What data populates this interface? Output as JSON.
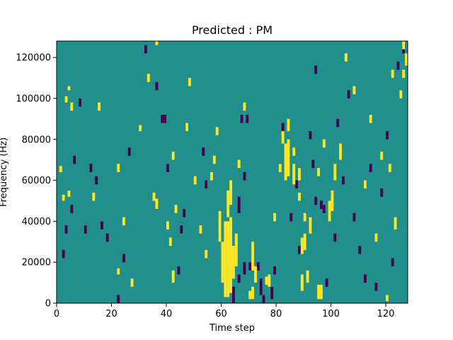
{
  "chart_data": {
    "type": "heatmap",
    "title": "Predicted : PM",
    "xlabel": "Time step",
    "ylabel": "Frequency (Hz)",
    "xlim": [
      0,
      128
    ],
    "ylim": [
      0,
      128000
    ],
    "x_ticks": [
      0,
      20,
      40,
      60,
      80,
      100,
      120
    ],
    "x_tick_labels": [
      "0",
      "20",
      "40",
      "60",
      "80",
      "100",
      "120"
    ],
    "y_ticks": [
      0,
      20000,
      40000,
      60000,
      80000,
      100000,
      120000
    ],
    "y_tick_labels": [
      "0",
      "20000",
      "40000",
      "60000",
      "80000",
      "100000",
      "120000"
    ],
    "grid": false,
    "n_time_steps": 128,
    "n_freq_bins": 128,
    "bin_height_hz": 1000,
    "colors": {
      "background": "#21908d",
      "low": "#440154",
      "high": "#fde725"
    },
    "high_segments": [
      [
        61,
        3,
        40
      ],
      [
        62,
        3,
        40
      ],
      [
        63,
        5,
        42
      ],
      [
        60,
        10,
        30
      ],
      [
        64,
        12,
        28
      ],
      [
        59,
        30,
        45
      ],
      [
        65,
        18,
        34
      ],
      [
        62,
        42,
        55
      ],
      [
        63,
        48,
        60
      ],
      [
        71,
        16,
        30
      ],
      [
        72,
        10,
        18
      ],
      [
        71,
        2,
        8
      ],
      [
        70,
        2,
        6
      ],
      [
        76,
        9,
        13
      ],
      [
        77,
        8,
        14
      ],
      [
        96,
        2,
        9
      ],
      [
        95,
        2,
        9
      ],
      [
        83,
        60,
        78
      ],
      [
        84,
        62,
        80
      ],
      [
        82,
        78,
        84
      ],
      [
        84,
        84,
        90
      ],
      [
        86,
        58,
        68
      ],
      [
        88,
        60,
        66
      ],
      [
        89,
        24,
        32
      ],
      [
        90,
        26,
        34
      ],
      [
        89,
        6,
        14
      ],
      [
        91,
        10,
        16
      ],
      [
        92,
        34,
        42
      ],
      [
        99,
        40,
        50
      ],
      [
        100,
        45,
        55
      ],
      [
        101,
        60,
        68
      ],
      [
        103,
        70,
        78
      ],
      [
        120,
        1,
        4
      ],
      [
        123,
        36,
        42
      ],
      [
        125,
        100,
        104
      ],
      [
        126,
        110,
        114
      ],
      [
        127,
        116,
        122
      ],
      [
        126,
        124,
        128
      ],
      [
        4,
        104,
        106
      ],
      [
        3,
        98,
        101
      ],
      [
        5,
        94,
        98
      ],
      [
        4,
        52,
        55
      ],
      [
        1,
        64,
        67
      ],
      [
        2,
        50,
        53
      ],
      [
        13,
        50,
        54
      ],
      [
        15,
        94,
        98
      ],
      [
        22,
        64,
        68
      ],
      [
        24,
        38,
        42
      ],
      [
        22,
        14,
        17
      ],
      [
        27,
        8,
        12
      ],
      [
        30,
        84,
        87
      ],
      [
        33,
        108,
        112
      ],
      [
        35,
        50,
        54
      ],
      [
        36,
        46,
        51
      ],
      [
        36,
        126,
        128
      ],
      [
        40,
        36,
        40
      ],
      [
        41,
        28,
        32
      ],
      [
        42,
        70,
        74
      ],
      [
        42,
        10,
        16
      ],
      [
        43,
        44,
        48
      ],
      [
        47,
        84,
        88
      ],
      [
        48,
        106,
        110
      ],
      [
        50,
        58,
        62
      ],
      [
        52,
        34,
        38
      ],
      [
        54,
        22,
        26
      ],
      [
        56,
        60,
        64
      ],
      [
        57,
        68,
        72
      ],
      [
        58,
        82,
        86
      ],
      [
        66,
        66,
        70
      ],
      [
        68,
        94,
        98
      ],
      [
        79,
        40,
        44
      ],
      [
        81,
        64,
        68
      ],
      [
        86,
        72,
        76
      ],
      [
        88,
        50,
        54
      ],
      [
        90,
        40,
        44
      ],
      [
        95,
        62,
        66
      ],
      [
        97,
        76,
        80
      ],
      [
        105,
        118,
        122
      ],
      [
        108,
        102,
        106
      ],
      [
        112,
        56,
        60
      ],
      [
        114,
        88,
        92
      ],
      [
        116,
        30,
        34
      ],
      [
        118,
        70,
        74
      ],
      [
        121,
        64,
        68
      ],
      [
        122,
        110,
        114
      ]
    ],
    "low_segments": [
      [
        64,
        0,
        8
      ],
      [
        66,
        10,
        14
      ],
      [
        68,
        14,
        20
      ],
      [
        70,
        16,
        20
      ],
      [
        73,
        16,
        20
      ],
      [
        74,
        4,
        12
      ],
      [
        75,
        0,
        4
      ],
      [
        78,
        2,
        8
      ],
      [
        79,
        14,
        18
      ],
      [
        66,
        44,
        52
      ],
      [
        68,
        60,
        64
      ],
      [
        67,
        88,
        92
      ],
      [
        69,
        88,
        92
      ],
      [
        53,
        72,
        76
      ],
      [
        54,
        56,
        60
      ],
      [
        46,
        42,
        46
      ],
      [
        45,
        34,
        38
      ],
      [
        44,
        14,
        18
      ],
      [
        38,
        88,
        92
      ],
      [
        39,
        88,
        92
      ],
      [
        40,
        64,
        68
      ],
      [
        36,
        104,
        108
      ],
      [
        32,
        122,
        126
      ],
      [
        26,
        72,
        76
      ],
      [
        24,
        20,
        24
      ],
      [
        22,
        0,
        4
      ],
      [
        18,
        30,
        34
      ],
      [
        16,
        36,
        40
      ],
      [
        14,
        58,
        62
      ],
      [
        12,
        64,
        68
      ],
      [
        10,
        34,
        38
      ],
      [
        8,
        96,
        100
      ],
      [
        6,
        68,
        72
      ],
      [
        5,
        44,
        48
      ],
      [
        3,
        34,
        38
      ],
      [
        2,
        22,
        26
      ],
      [
        82,
        84,
        88
      ],
      [
        85,
        40,
        44
      ],
      [
        87,
        56,
        60
      ],
      [
        88,
        24,
        28
      ],
      [
        94,
        48,
        52
      ],
      [
        97,
        44,
        48
      ],
      [
        98,
        8,
        12
      ],
      [
        101,
        30,
        34
      ],
      [
        102,
        86,
        90
      ],
      [
        104,
        58,
        62
      ],
      [
        106,
        100,
        104
      ],
      [
        108,
        40,
        44
      ],
      [
        110,
        24,
        28
      ],
      [
        112,
        10,
        14
      ],
      [
        114,
        64,
        68
      ],
      [
        116,
        6,
        10
      ],
      [
        118,
        52,
        56
      ],
      [
        120,
        80,
        84
      ],
      [
        122,
        18,
        22
      ],
      [
        124,
        114,
        118
      ],
      [
        126,
        122,
        126
      ],
      [
        92,
        80,
        84
      ],
      [
        93,
        66,
        70
      ],
      [
        94,
        112,
        116
      ],
      [
        96,
        46,
        50
      ]
    ]
  }
}
